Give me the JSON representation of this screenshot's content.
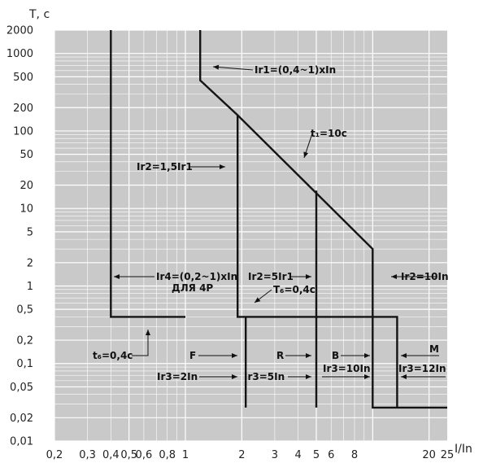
{
  "chart_data": {
    "type": "line",
    "xlabel": "I/In",
    "ylabel": "T, c",
    "xscale": "log",
    "yscale": "log",
    "xlim": [
      0.2,
      25
    ],
    "ylim": [
      0.01,
      2000
    ],
    "grid": true,
    "x_tick_labels": [
      "0,2",
      "0,3",
      "0,4",
      "0,5",
      "0,6",
      "0,8",
      "1",
      "2",
      "3",
      "4",
      "5",
      "6",
      "8",
      "20",
      "25"
    ],
    "y_tick_labels": [
      "2000",
      "1000",
      "500",
      "200",
      "100",
      "50",
      "20",
      "10",
      "5",
      "2",
      "1",
      "0,5",
      "0,2",
      "0,1",
      "0,05",
      "0,02",
      "0,01"
    ],
    "series": [
      {
        "points": [
          [
            0.4,
            2000
          ],
          [
            0.4,
            0.4
          ],
          [
            1,
            0.4
          ]
        ]
      },
      {
        "points": [
          [
            1.2,
            2000
          ],
          [
            1.2,
            450
          ],
          [
            1.9,
            160
          ],
          [
            10,
            3
          ],
          [
            10,
            0.027
          ],
          [
            25,
            0.027
          ]
        ]
      },
      {
        "points": [
          [
            1.9,
            160
          ],
          [
            1.9,
            0.4
          ],
          [
            13.5,
            0.4
          ],
          [
            13.5,
            0.027
          ]
        ]
      },
      {
        "points": [
          [
            2.1,
            0.4
          ],
          [
            2.1,
            0.027
          ]
        ]
      },
      {
        "points": [
          [
            5,
            17
          ],
          [
            5,
            0.027
          ]
        ]
      }
    ],
    "annotations": [
      {
        "text": "Ir1=(0,4~1)xIn"
      },
      {
        "text": "t₁=10c"
      },
      {
        "text": "Ir2=1,5Ir1"
      },
      {
        "text": "Ir4=(0,2~1)xIn"
      },
      {
        "text": "ДЛЯ 4Р"
      },
      {
        "text": "Ir2=5Ir1"
      },
      {
        "text": "T₆=0,4c"
      },
      {
        "text": "Ir2=10In"
      },
      {
        "text": "t₆=0,4c"
      },
      {
        "text": "F"
      },
      {
        "text": "R"
      },
      {
        "text": "B"
      },
      {
        "text": "M"
      },
      {
        "text": "Ir3=2In"
      },
      {
        "text": "Ir3=5In"
      },
      {
        "text": "Ir3=10In"
      },
      {
        "text": "Ir3=12In"
      }
    ]
  }
}
